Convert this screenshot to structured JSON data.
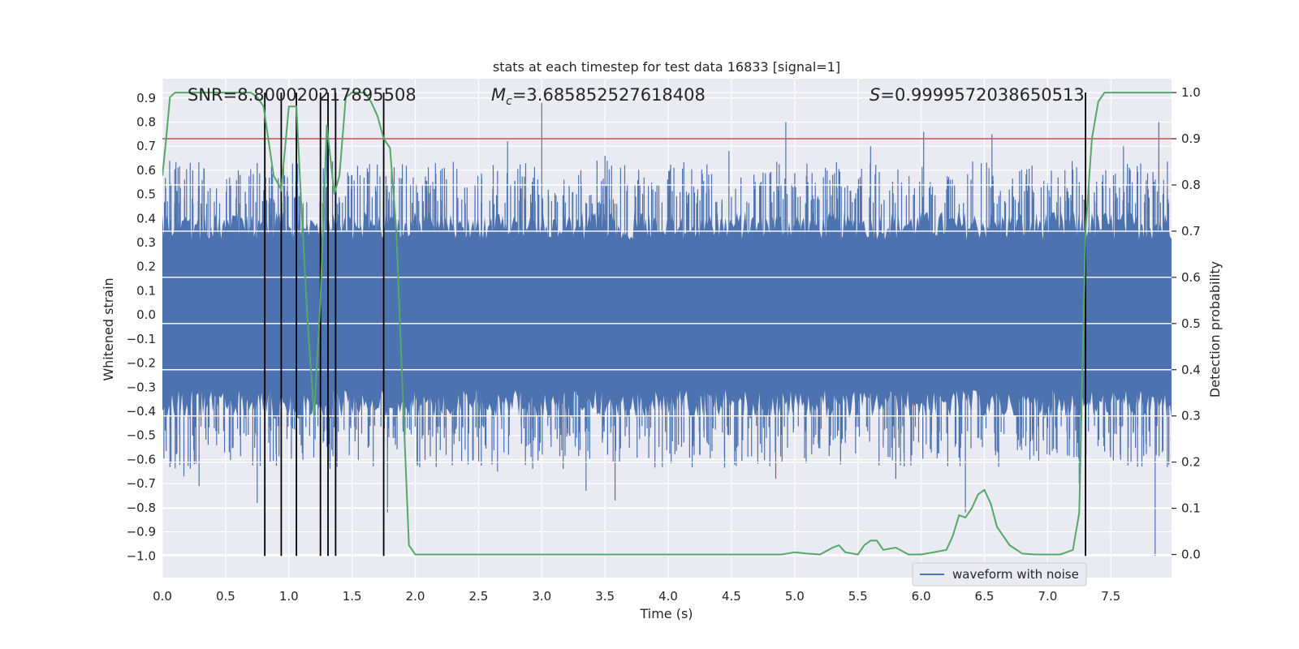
{
  "chart_data": {
    "type": "line",
    "title": "stats at each timestep for test data 16833 [signal=1]",
    "xlabel": "Time (s)",
    "ylabel_left": "Whitened strain",
    "ylabel_right": "Detection probability",
    "xlim": [
      0,
      7.98
    ],
    "ylim_left": [
      -1.09,
      0.98
    ],
    "ylim_right": [
      -0.05,
      1.03
    ],
    "x_ticks": [
      "0.0",
      "0.5",
      "1.0",
      "1.5",
      "2.0",
      "2.5",
      "3.0",
      "3.5",
      "4.0",
      "4.5",
      "5.0",
      "5.5",
      "6.0",
      "6.5",
      "7.0",
      "7.5"
    ],
    "x_tick_values": [
      0,
      0.5,
      1,
      1.5,
      2,
      2.5,
      3,
      3.5,
      4,
      4.5,
      5,
      5.5,
      6,
      6.5,
      7,
      7.5
    ],
    "y_left_ticks": [
      "0.9",
      "0.8",
      "0.7",
      "0.6",
      "0.5",
      "0.4",
      "0.3",
      "0.2",
      "0.1",
      "0.0",
      "−0.1",
      "−0.2",
      "−0.3",
      "−0.4",
      "−0.5",
      "−0.6",
      "−0.7",
      "−0.8",
      "−0.9",
      "−1.0"
    ],
    "y_left_tick_values": [
      0.9,
      0.8,
      0.7,
      0.6,
      0.5,
      0.4,
      0.3,
      0.2,
      0.1,
      0.0,
      -0.1,
      -0.2,
      -0.3,
      -0.4,
      -0.5,
      -0.6,
      -0.7,
      -0.8,
      -0.9,
      -1.0
    ],
    "y_right_ticks": [
      "1.0",
      "0.9",
      "0.8",
      "0.7",
      "0.6",
      "0.5",
      "0.4",
      "0.3",
      "0.2",
      "0.1",
      "0.0"
    ],
    "y_right_tick_values": [
      1.0,
      0.9,
      0.8,
      0.7,
      0.6,
      0.5,
      0.4,
      0.3,
      0.2,
      0.1,
      0.0
    ],
    "grid": true,
    "legend": {
      "location": "lower-right",
      "entries": [
        "waveform with noise"
      ]
    },
    "annotations": {
      "snr": "SNR=8.800020217895508",
      "mc_symbol": "M",
      "mc_sub": "c",
      "mc_value": "=3.685852527618408",
      "s_symbol": "S",
      "s_value": "=0.9999572038650513"
    },
    "threshold": {
      "value": 0.9,
      "axis": "right",
      "color": "#c44e52"
    },
    "trigger_times": [
      0.81,
      0.94,
      1.06,
      1.25,
      1.31,
      1.37,
      1.75,
      7.3
    ],
    "series": [
      {
        "name": "waveform with noise",
        "axis": "left",
        "color": "#4c72b0",
        "core_amplitude": 0.4,
        "peaks": [
          {
            "x": 0.06,
            "y": 0.55
          },
          {
            "x": 0.24,
            "y": 0.6
          },
          {
            "x": 0.6,
            "y": 0.6
          },
          {
            "x": 0.75,
            "y": 0.63
          },
          {
            "x": 1.3,
            "y": 0.75
          },
          {
            "x": 2.2,
            "y": 0.6
          },
          {
            "x": 2.73,
            "y": 0.72
          },
          {
            "x": 3.0,
            "y": 0.88
          },
          {
            "x": 3.5,
            "y": 0.66
          },
          {
            "x": 4.48,
            "y": 0.68
          },
          {
            "x": 4.93,
            "y": 0.8
          },
          {
            "x": 5.6,
            "y": 0.7
          },
          {
            "x": 6.02,
            "y": 0.76
          },
          {
            "x": 6.56,
            "y": 0.75
          },
          {
            "x": 7.6,
            "y": 0.7
          },
          {
            "x": 7.88,
            "y": 0.8
          }
        ],
        "troughs": [
          {
            "x": 0.17,
            "y": -0.67
          },
          {
            "x": 0.29,
            "y": -0.71
          },
          {
            "x": 0.75,
            "y": -0.78
          },
          {
            "x": 1.78,
            "y": -0.82
          },
          {
            "x": 2.65,
            "y": -0.65
          },
          {
            "x": 3.35,
            "y": -0.73
          },
          {
            "x": 3.58,
            "y": -0.77
          },
          {
            "x": 4.85,
            "y": -0.68
          },
          {
            "x": 5.8,
            "y": -0.68
          },
          {
            "x": 6.35,
            "y": -0.82
          },
          {
            "x": 7.25,
            "y": -0.7
          },
          {
            "x": 7.85,
            "y": -1.0
          }
        ]
      },
      {
        "name": "",
        "axis": "right",
        "color": "#55a868",
        "x": [
          0.0,
          0.03,
          0.06,
          0.1,
          0.2,
          0.3,
          0.4,
          0.5,
          0.6,
          0.7,
          0.75,
          0.8,
          0.88,
          0.94,
          1.0,
          1.06,
          1.1,
          1.15,
          1.2,
          1.25,
          1.3,
          1.36,
          1.4,
          1.45,
          1.5,
          1.55,
          1.6,
          1.65,
          1.7,
          1.75,
          1.8,
          1.85,
          1.9,
          1.95,
          2.0,
          2.2,
          2.5,
          3.0,
          3.5,
          4.0,
          4.5,
          4.9,
          5.0,
          5.1,
          5.2,
          5.3,
          5.35,
          5.4,
          5.5,
          5.55,
          5.6,
          5.65,
          5.7,
          5.8,
          5.9,
          6.0,
          6.1,
          6.2,
          6.25,
          6.3,
          6.35,
          6.4,
          6.45,
          6.5,
          6.55,
          6.6,
          6.7,
          6.8,
          6.9,
          7.0,
          7.1,
          7.15,
          7.2,
          7.25,
          7.3,
          7.35,
          7.4,
          7.45,
          7.5,
          7.6,
          7.7,
          7.8,
          7.9,
          7.98
        ],
        "y": [
          0.82,
          0.9,
          0.99,
          1.0,
          1.0,
          1.0,
          1.0,
          1.0,
          1.0,
          1.0,
          0.99,
          0.97,
          0.82,
          0.79,
          0.97,
          0.97,
          0.75,
          0.5,
          0.3,
          0.55,
          0.93,
          0.78,
          0.82,
          0.99,
          1.0,
          1.0,
          1.0,
          0.98,
          0.95,
          0.9,
          0.88,
          0.7,
          0.35,
          0.02,
          0.0,
          0.0,
          0.0,
          0.0,
          0.0,
          0.0,
          0.0,
          0.0,
          0.005,
          0.002,
          0.0,
          0.015,
          0.02,
          0.005,
          0.0,
          0.02,
          0.03,
          0.03,
          0.01,
          0.015,
          0.0,
          0.0,
          0.005,
          0.01,
          0.04,
          0.085,
          0.08,
          0.1,
          0.13,
          0.14,
          0.11,
          0.06,
          0.02,
          0.002,
          0.0,
          0.0,
          0.0,
          0.005,
          0.01,
          0.09,
          0.7,
          0.9,
          0.98,
          1.0,
          1.0,
          1.0,
          1.0,
          1.0,
          1.0,
          1.0
        ]
      }
    ]
  }
}
